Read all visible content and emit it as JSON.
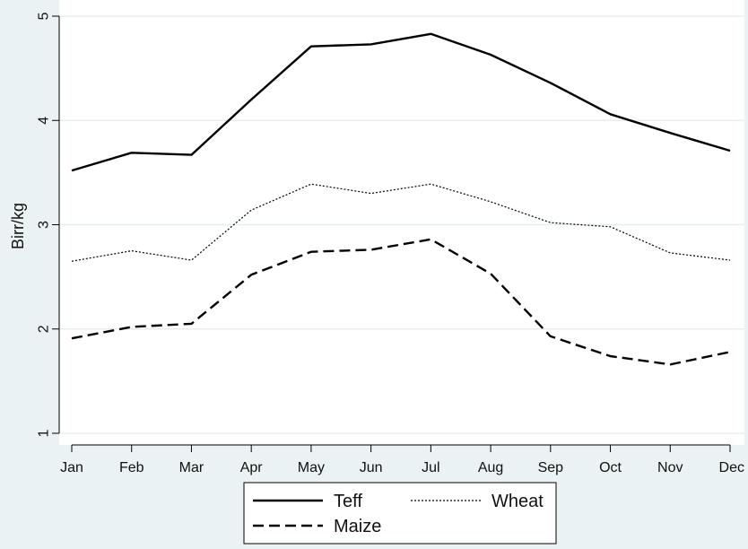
{
  "chart_data": {
    "type": "line",
    "categories": [
      "Jan",
      "Feb",
      "Mar",
      "Apr",
      "May",
      "Jun",
      "Jul",
      "Aug",
      "Sep",
      "Oct",
      "Nov",
      "Dec"
    ],
    "ylabel": "Birr/kg",
    "xlabel": "",
    "title": "",
    "ylim": [
      1,
      5
    ],
    "yticks": [
      1,
      2,
      3,
      4,
      5
    ],
    "grid": true,
    "legend_position": "bottom",
    "series": [
      {
        "name": "Teff",
        "style": "solid",
        "values": [
          3.52,
          3.69,
          3.67,
          4.2,
          4.71,
          4.73,
          4.83,
          4.63,
          4.36,
          4.06,
          3.88,
          3.71
        ]
      },
      {
        "name": "Wheat",
        "style": "dotted",
        "values": [
          2.65,
          2.75,
          2.66,
          3.14,
          3.39,
          3.3,
          3.39,
          3.22,
          3.02,
          2.98,
          2.73,
          2.66
        ]
      },
      {
        "name": "Maize",
        "style": "dashed",
        "values": [
          1.91,
          2.02,
          2.05,
          2.52,
          2.74,
          2.76,
          2.86,
          2.53,
          1.93,
          1.74,
          1.66,
          1.78
        ]
      }
    ],
    "colors": {
      "line": "#000000",
      "plot_bg": "#ffffff",
      "page_bg": "#eaf2f3",
      "grid": "#e8eef0"
    }
  }
}
